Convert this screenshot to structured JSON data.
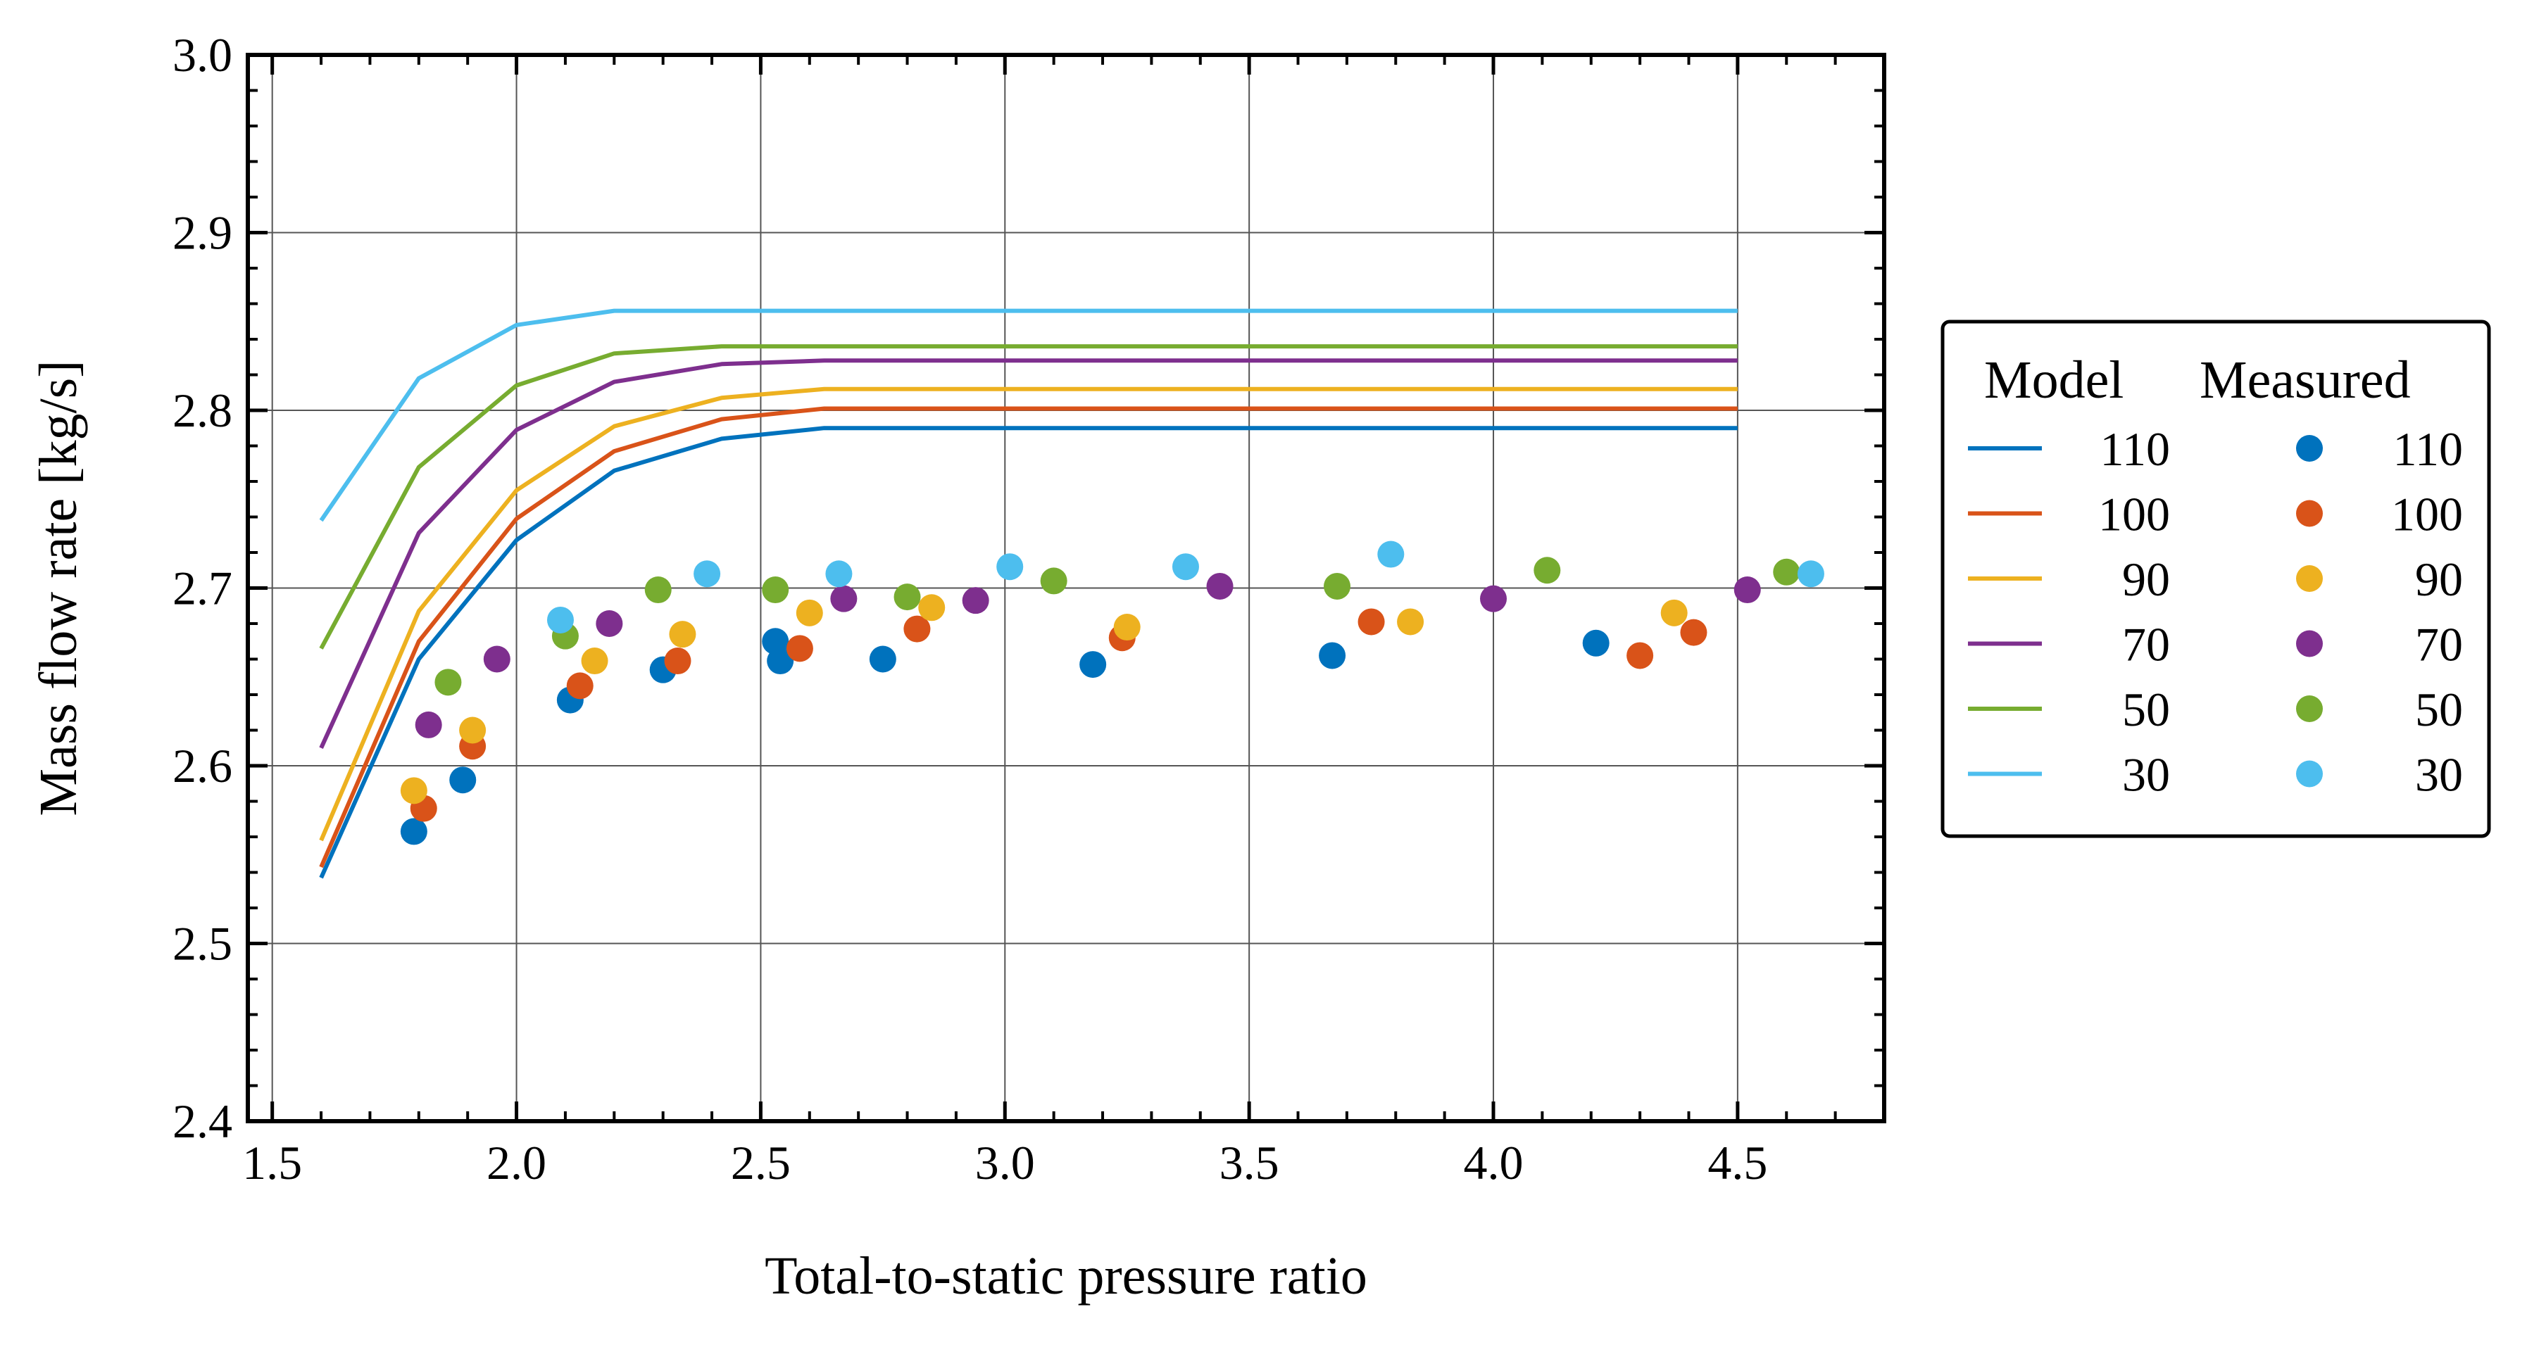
{
  "chart_data": {
    "type": "scatter",
    "xlabel": "Total-to-static pressure ratio",
    "ylabel": "Mass flow rate [kg/s]",
    "xlim": [
      1.45,
      4.8
    ],
    "ylim": [
      2.4,
      3.0
    ],
    "xticks": [
      "1.5",
      "2.0",
      "2.5",
      "3.0",
      "3.5",
      "4.0",
      "4.5"
    ],
    "yticks": [
      "2.4",
      "2.5",
      "2.6",
      "2.7",
      "2.8",
      "2.9",
      "3.0"
    ],
    "grid": true,
    "legend": {
      "placement": "right",
      "model_header": "Model",
      "measured_header": "Measured",
      "entries": [
        "110",
        "100",
        "90",
        "70",
        "50",
        "30"
      ]
    },
    "model_series": [
      {
        "name": "110",
        "color": "#0072BD",
        "x": [
          1.6,
          1.8,
          2.0,
          2.2,
          2.42,
          2.63,
          4.5
        ],
        "y": [
          2.537,
          2.66,
          2.727,
          2.766,
          2.784,
          2.79,
          2.79
        ]
      },
      {
        "name": "100",
        "color": "#D95319",
        "x": [
          1.6,
          1.8,
          2.0,
          2.2,
          2.42,
          2.63,
          4.5
        ],
        "y": [
          2.543,
          2.67,
          2.739,
          2.777,
          2.795,
          2.801,
          2.801
        ]
      },
      {
        "name": "90",
        "color": "#EDB120",
        "x": [
          1.6,
          1.8,
          2.0,
          2.2,
          2.42,
          2.63,
          4.5
        ],
        "y": [
          2.558,
          2.687,
          2.755,
          2.791,
          2.807,
          2.812,
          2.812
        ]
      },
      {
        "name": "70",
        "color": "#7E2F8E",
        "x": [
          1.6,
          1.8,
          2.0,
          2.2,
          2.42,
          2.63,
          4.5
        ],
        "y": [
          2.61,
          2.731,
          2.789,
          2.816,
          2.826,
          2.828,
          2.828
        ]
      },
      {
        "name": "50",
        "color": "#77AC30",
        "x": [
          1.6,
          1.8,
          2.0,
          2.2,
          2.42,
          2.63,
          4.5
        ],
        "y": [
          2.666,
          2.768,
          2.814,
          2.832,
          2.836,
          2.836,
          2.836
        ]
      },
      {
        "name": "30",
        "color": "#4DBEEE",
        "x": [
          1.6,
          1.8,
          2.0,
          2.2,
          2.42,
          2.63,
          4.5
        ],
        "y": [
          2.738,
          2.818,
          2.848,
          2.856,
          2.856,
          2.856,
          2.856
        ]
      }
    ],
    "measured_series": [
      {
        "name": "110",
        "color": "#0072BD",
        "x": [
          1.79,
          1.89,
          2.11,
          2.3,
          2.53,
          2.54,
          2.75,
          3.18,
          3.67,
          4.21
        ],
        "y": [
          2.563,
          2.592,
          2.637,
          2.654,
          2.67,
          2.659,
          2.66,
          2.657,
          2.662,
          2.669
        ]
      },
      {
        "name": "100",
        "color": "#D95319",
        "x": [
          1.81,
          1.91,
          2.13,
          2.33,
          2.58,
          2.82,
          3.24,
          3.75,
          4.3,
          4.41
        ],
        "y": [
          2.576,
          2.611,
          2.645,
          2.659,
          2.666,
          2.677,
          2.672,
          2.681,
          2.662,
          2.675
        ]
      },
      {
        "name": "90",
        "color": "#EDB120",
        "x": [
          1.79,
          1.91,
          2.16,
          2.34,
          2.6,
          2.85,
          3.25,
          3.83,
          4.37
        ],
        "y": [
          2.586,
          2.62,
          2.659,
          2.674,
          2.686,
          2.689,
          2.678,
          2.681,
          2.686
        ]
      },
      {
        "name": "70",
        "color": "#7E2F8E",
        "x": [
          1.82,
          1.96,
          2.19,
          2.67,
          2.94,
          3.44,
          4.0,
          4.52
        ],
        "y": [
          2.623,
          2.66,
          2.68,
          2.694,
          2.693,
          2.701,
          2.694,
          2.699
        ]
      },
      {
        "name": "50",
        "color": "#77AC30",
        "x": [
          1.86,
          2.1,
          2.29,
          2.53,
          2.8,
          3.1,
          3.68,
          4.11,
          4.6
        ],
        "y": [
          2.647,
          2.673,
          2.699,
          2.699,
          2.695,
          2.704,
          2.701,
          2.71,
          2.709
        ]
      },
      {
        "name": "30",
        "color": "#4DBEEE",
        "x": [
          2.09,
          2.39,
          2.66,
          3.01,
          3.37,
          3.79,
          4.65
        ],
        "y": [
          2.682,
          2.708,
          2.708,
          2.712,
          2.712,
          2.719,
          2.708
        ]
      }
    ]
  }
}
